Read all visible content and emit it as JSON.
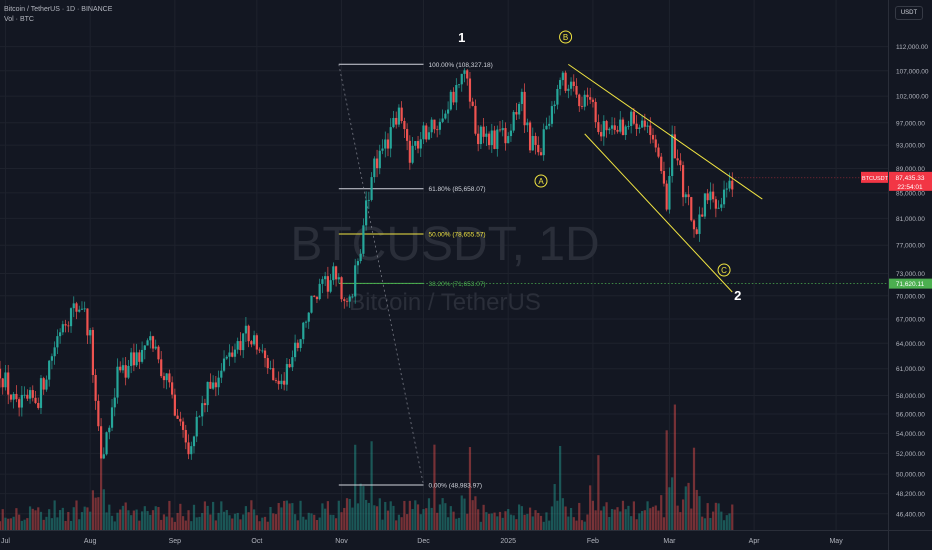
{
  "header": {
    "symbol_line": "Bitcoin / TetherUS · 1D · BINANCE",
    "volume_line": "Vol · BTC"
  },
  "currency_button": "USDT",
  "watermark": {
    "symbol": "BTCUSDT, 1D",
    "name": "Bitcoin / TetherUS"
  },
  "colors": {
    "background": "#131722",
    "up": "#26a69a",
    "down": "#ef5350",
    "wave": "#f0e442",
    "fib_50": "#f0e442",
    "fib_382": "#4caf50",
    "support": "#4caf50",
    "label_price": "#f23645"
  },
  "price_label": {
    "symbol": "BTCUSDT",
    "price": "87,435.33",
    "countdown": "22:54:01",
    "value": 87435.33
  },
  "support_label": {
    "price": "71,620.11",
    "value": 71620.11
  },
  "wave_labels": {
    "wave1": "1",
    "wave2": "2",
    "A": "A",
    "B": "B",
    "C": "C"
  },
  "chart_data": {
    "type": "candlestick",
    "y_scale": "log",
    "ylim": [
      45000,
      120000
    ],
    "ytick_labels": [
      "112,000.00",
      "107,000.00",
      "102,000.00",
      "97,000.00",
      "93,000.00",
      "89,000.00",
      "85,000.00",
      "81,000.00",
      "77,000.00",
      "73,000.00",
      "70,000.00",
      "67,000.00",
      "64,000.00",
      "61,000.00",
      "58,000.00",
      "56,000.00",
      "54,000.00",
      "52,000.00",
      "50,000.00",
      "48,200.00",
      "46,400.00"
    ],
    "ytick_values": [
      112000,
      107000,
      102000,
      97000,
      93000,
      89000,
      85000,
      81000,
      77000,
      73000,
      70000,
      67000,
      64000,
      61000,
      58000,
      56000,
      54000,
      52000,
      50000,
      48200,
      46400
    ],
    "xtick_labels": [
      "Jul",
      "Aug",
      "Sep",
      "Oct",
      "Nov",
      "Dec",
      "2025",
      "Feb",
      "Mar",
      "Apr",
      "May"
    ],
    "xtick_dates": [
      "2024-07-01",
      "2024-08-01",
      "2024-09-01",
      "2024-10-01",
      "2024-11-01",
      "2024-12-01",
      "2025-01-01",
      "2025-02-01",
      "2025-03-01",
      "2025-04-01",
      "2025-05-01"
    ],
    "x_range": [
      "2024-06-29",
      "2025-05-20"
    ],
    "price_anchors": [
      [
        "2024-06-29",
        61000
      ],
      [
        "2024-07-05",
        56500
      ],
      [
        "2024-07-13",
        57800
      ],
      [
        "2024-07-22",
        67000
      ],
      [
        "2024-07-29",
        69000
      ],
      [
        "2024-08-01",
        64500
      ],
      [
        "2024-08-05",
        51000
      ],
      [
        "2024-08-11",
        60500
      ],
      [
        "2024-08-24",
        64000
      ],
      [
        "2024-09-06",
        53000
      ],
      [
        "2024-09-14",
        59000
      ],
      [
        "2024-09-27",
        65500
      ],
      [
        "2024-10-10",
        59000
      ],
      [
        "2024-10-21",
        69000
      ],
      [
        "2024-10-29",
        72500
      ],
      [
        "2024-11-04",
        68500
      ],
      [
        "2024-11-09",
        79500
      ],
      [
        "2024-11-12",
        88000
      ],
      [
        "2024-11-22",
        98500
      ],
      [
        "2024-11-26",
        92000
      ],
      [
        "2024-12-05",
        97000
      ],
      [
        "2024-12-17",
        106500
      ],
      [
        "2024-12-20",
        95000
      ],
      [
        "2025-01-01",
        94000
      ],
      [
        "2025-01-06",
        102000
      ],
      [
        "2025-01-09",
        92500
      ],
      [
        "2025-01-13",
        93000
      ],
      [
        "2025-01-20",
        106000
      ],
      [
        "2025-01-27",
        101000
      ],
      [
        "2025-01-31",
        103000
      ],
      [
        "2025-02-03",
        95000
      ],
      [
        "2025-02-20",
        98500
      ],
      [
        "2025-02-25",
        89000
      ],
      [
        "2025-02-28",
        82500
      ],
      [
        "2025-03-02",
        94000
      ],
      [
        "2025-03-10",
        79000
      ],
      [
        "2025-03-14",
        84000
      ],
      [
        "2025-03-21",
        84000
      ],
      [
        "2025-03-24",
        87435
      ]
    ],
    "volume_spike_dates": [
      "2024-08-05",
      "2024-11-06",
      "2024-11-12",
      "2024-12-05",
      "2024-12-18",
      "2025-01-20",
      "2025-02-03",
      "2025-02-28",
      "2025-03-03",
      "2025-03-10"
    ],
    "fib_levels": [
      {
        "label": "100.00% (108,327.18)",
        "value": 108327.18
      },
      {
        "label": "61.80% (85,658.07)",
        "value": 85658.07
      },
      {
        "label": "50.00% (78,655.57)",
        "value": 78655.57
      },
      {
        "label": "38.20% (71,653.07)",
        "value": 71653.07
      },
      {
        "label": "0.00% (48,983.97)",
        "value": 48983.97
      }
    ],
    "support_level": 71620.11,
    "current_price": 87435.33
  }
}
